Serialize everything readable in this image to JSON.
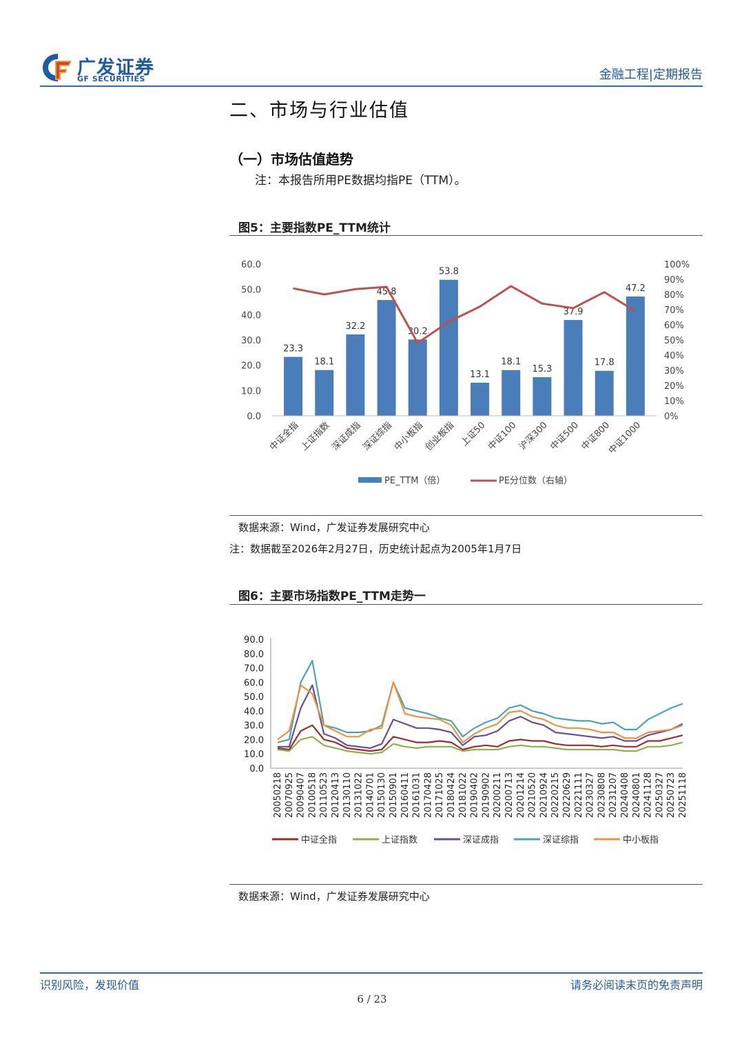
{
  "header": {
    "logo_cn": "广发证券",
    "logo_en": "GF SECURITIES",
    "category": "金融工程|定期报告"
  },
  "section": {
    "title": "二、市场与行业估值",
    "subsection": "（一）市场估值趋势",
    "note": "注：本报告所用PE数据均指PE（TTM）。"
  },
  "figure5": {
    "title": "图5：主要指数PE_TTM统计",
    "source": "数据来源：Wind，广发证券发展研究中心",
    "footnote": "注：数据截至2026年2月27日，历史统计起点为2005年1月7日"
  },
  "figure6": {
    "title": "图6：主要市场指数PE_TTM走势一",
    "source": "数据来源：Wind，广发证券发展研究中心"
  },
  "footer": {
    "left": "识别风险，发现价值",
    "right": "请务必阅读末页的免责声明",
    "page": "6 / 23"
  },
  "colors": {
    "brand": "#1f5aa6",
    "bar": "#4a7ebb",
    "line": "#c0504d",
    "series": [
      "#a32a2a",
      "#8db04a",
      "#6a4c9c",
      "#4aa3b8",
      "#f0923a"
    ]
  },
  "chart_data": [
    {
      "type": "bar",
      "categories": [
        "中证全指",
        "上证指数",
        "深证成指",
        "深证综指",
        "中小板指",
        "创业板指",
        "上证50",
        "中证100",
        "沪深300",
        "中证500",
        "中证800",
        "中证1000"
      ],
      "series": [
        {
          "name": "PE_TTM（倍）",
          "type": "bar",
          "axis": "left",
          "values": [
            23.3,
            18.1,
            32.2,
            45.8,
            30.2,
            53.8,
            13.1,
            18.1,
            15.3,
            37.9,
            17.8,
            47.2
          ]
        },
        {
          "name": "PE分位数（右轴）",
          "type": "line",
          "axis": "right",
          "values": [
            84,
            80,
            83.5,
            85,
            48,
            62,
            72,
            85.5,
            74,
            71,
            81.5,
            69
          ]
        }
      ],
      "y_left": {
        "ticks": [
          "0.0",
          "10.0",
          "20.0",
          "30.0",
          "40.0",
          "50.0",
          "60.0"
        ],
        "lim": [
          0,
          60
        ]
      },
      "y_right": {
        "ticks": [
          "0%",
          "10%",
          "20%",
          "30%",
          "40%",
          "50%",
          "60%",
          "70%",
          "80%",
          "90%",
          "100%"
        ],
        "lim": [
          0,
          100
        ]
      },
      "legend_position": "bottom",
      "grid": false
    },
    {
      "type": "line",
      "x_ticks": [
        "20050218",
        "20070925",
        "20090407",
        "20100518",
        "20110523",
        "20120413",
        "20130110",
        "20131022",
        "20140701",
        "20150130",
        "20150901",
        "20160411",
        "20161031",
        "20170428",
        "20171025",
        "20180424",
        "20181022",
        "20190402",
        "20190902",
        "20200211",
        "20200713",
        "20201214",
        "20210520",
        "20210924",
        "20220215",
        "20220629",
        "20221111",
        "20230327",
        "20230808",
        "20231207",
        "20240408",
        "20240801",
        "20241128",
        "20250327",
        "20250723",
        "20251118"
      ],
      "y_ticks": [
        "0.0",
        "10.0",
        "20.0",
        "30.0",
        "40.0",
        "50.0",
        "60.0",
        "70.0",
        "80.0",
        "90.0"
      ],
      "ylim": [
        0,
        90
      ],
      "series": [
        {
          "name": "中证全指",
          "values": [
            14,
            13,
            26,
            30,
            20,
            18,
            14,
            13,
            12,
            13,
            22,
            20,
            18,
            18,
            19,
            18,
            13,
            15,
            16,
            15,
            19,
            20,
            19,
            19,
            17,
            16,
            16,
            16,
            15,
            16,
            15,
            15,
            19,
            19,
            21,
            23
          ]
        },
        {
          "name": "上证指数",
          "values": [
            13,
            12,
            20,
            22,
            16,
            14,
            12,
            11,
            10,
            11,
            17,
            15,
            14,
            15,
            15,
            15,
            12,
            13,
            13,
            13,
            15,
            16,
            15,
            15,
            14,
            13,
            13,
            13,
            13,
            13,
            12,
            12,
            15,
            15,
            16,
            18
          ]
        },
        {
          "name": "深证成指",
          "values": [
            15,
            15,
            42,
            58,
            24,
            21,
            16,
            15,
            14,
            17,
            34,
            31,
            28,
            28,
            27,
            25,
            16,
            22,
            23,
            26,
            33,
            36,
            32,
            30,
            25,
            24,
            23,
            22,
            21,
            22,
            19,
            19,
            23,
            25,
            27,
            31
          ]
        },
        {
          "name": "深证综指",
          "values": [
            18,
            20,
            60,
            75,
            30,
            28,
            25,
            25,
            26,
            30,
            60,
            42,
            40,
            38,
            35,
            33,
            22,
            28,
            32,
            35,
            42,
            44,
            40,
            38,
            35,
            34,
            33,
            33,
            31,
            32,
            27,
            27,
            34,
            38,
            42,
            45
          ]
        },
        {
          "name": "中小板指",
          "values": [
            20,
            26,
            58,
            52,
            30,
            26,
            22,
            22,
            27,
            28,
            60,
            38,
            36,
            35,
            34,
            30,
            18,
            24,
            28,
            31,
            39,
            40,
            36,
            34,
            30,
            28,
            28,
            27,
            25,
            25,
            21,
            21,
            25,
            26,
            27,
            30
          ]
        }
      ],
      "legend_position": "bottom",
      "grid": false
    }
  ]
}
